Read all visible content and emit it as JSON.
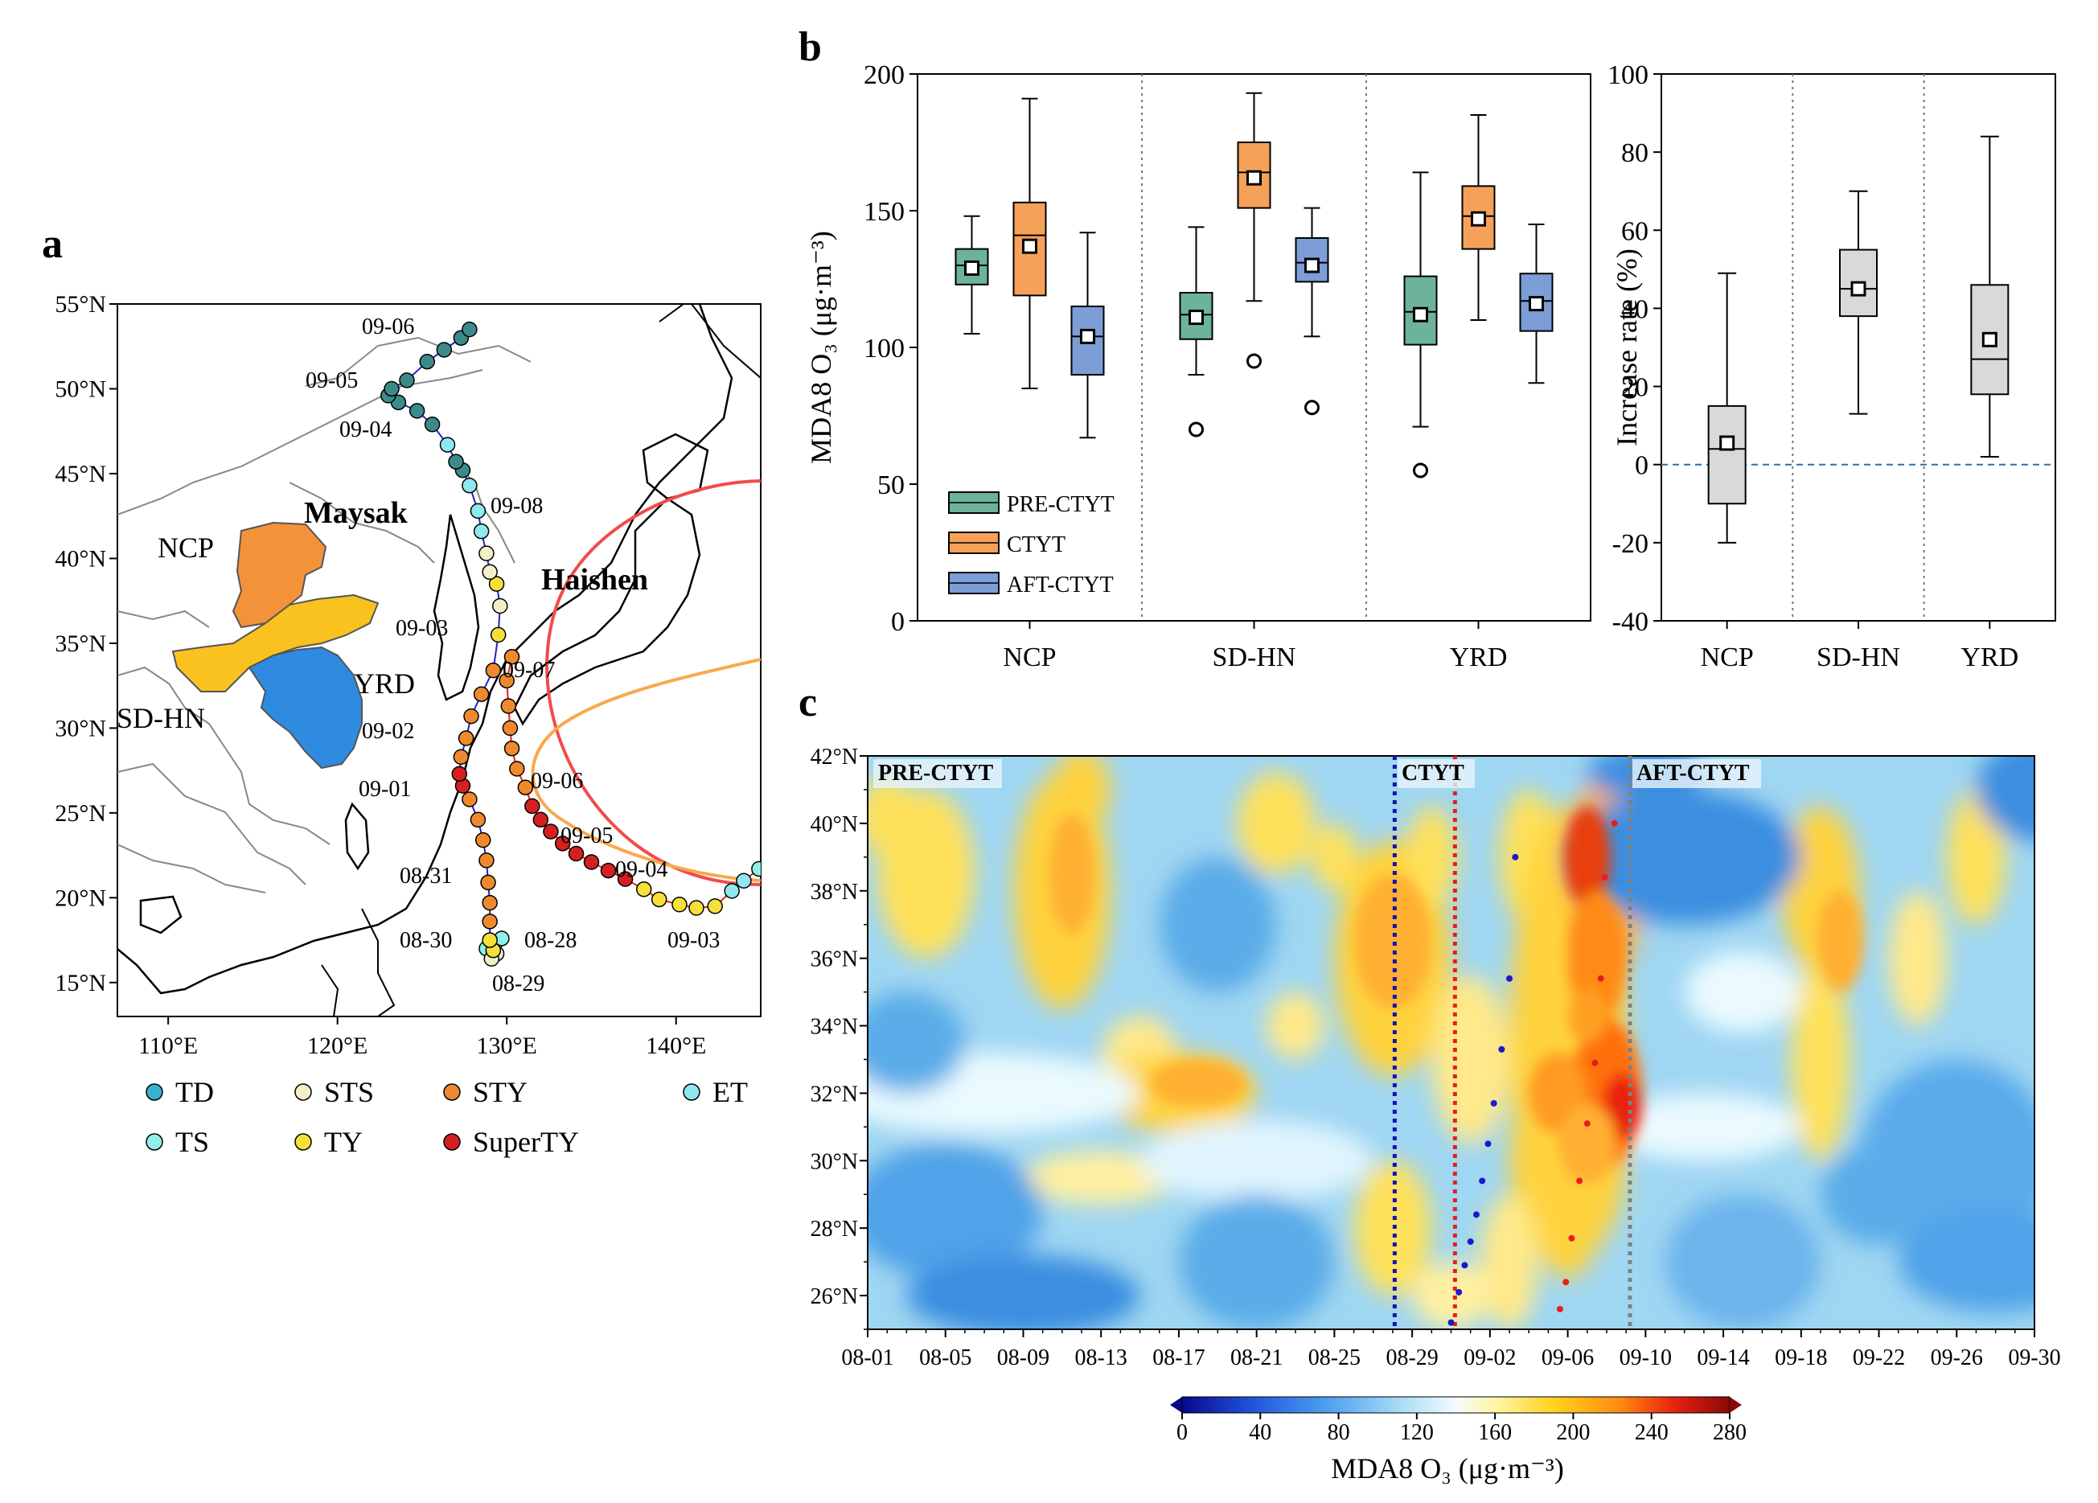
{
  "panels": {
    "a": {
      "letter": "a",
      "lat_ticks": [
        "15°N",
        "20°N",
        "25°N",
        "30°N",
        "35°N",
        "40°N",
        "45°N",
        "50°N",
        "55°N"
      ],
      "lon_ticks": [
        "110°E",
        "120°E",
        "130°E",
        "140°E"
      ],
      "lon_range": [
        107,
        145
      ],
      "lat_range": [
        13,
        55
      ],
      "regions": [
        {
          "name": "NCP",
          "color": "#f4923a"
        },
        {
          "name": "SD-HN",
          "color": "#f9c21e"
        },
        {
          "name": "YRD",
          "color": "#2f8be0"
        }
      ],
      "typhoon_labels": [
        {
          "name": "Maysak",
          "color": "#1a1aff"
        },
        {
          "name": "Haishen",
          "color": "#ee2222"
        }
      ],
      "maysak_dates": [
        "09-06",
        "09-05",
        "09-04",
        "09-03",
        "09-02",
        "09-01",
        "08-31",
        "08-30",
        "08-28",
        "08-29"
      ],
      "haishen_dates": [
        "09-08",
        "09-07",
        "09-06",
        "09-05",
        "09-04",
        "09-03"
      ],
      "legend": [
        {
          "label": "TD",
          "color": "#3ab0d0"
        },
        {
          "label": "STS",
          "color": "#f3f0c8"
        },
        {
          "label": "STY",
          "color": "#ee8a2d"
        },
        {
          "label": "ET",
          "color": "#8ee8f0"
        },
        {
          "label": "TS",
          "color": "#8ef0e8"
        },
        {
          "label": "TY",
          "color": "#f5e03a"
        },
        {
          "label": "SuperTY",
          "color": "#d42020"
        }
      ]
    },
    "b": {
      "letter": "b",
      "left_ylabel": "MDA8 O₃ (μg·m⁻³)",
      "right_ylabel": "Increase rate (%)",
      "left_yticks": [
        "0",
        "50",
        "100",
        "150",
        "200"
      ],
      "right_yticks": [
        "-40",
        "-20",
        "0",
        "20",
        "40",
        "60",
        "80",
        "100"
      ],
      "legend": [
        {
          "label": "PRE-CTYT",
          "color": "#6cb39a"
        },
        {
          "label": "CTYT",
          "color": "#f6a15a"
        },
        {
          "label": "AFT-CTYT",
          "color": "#7c9dd6"
        }
      ],
      "categories": [
        "NCP",
        "SD-HN",
        "YRD"
      ]
    },
    "c": {
      "letter": "c",
      "period_labels": [
        "PRE-CTYT",
        "CTYT",
        "AFT-CTYT"
      ],
      "lat_ticks": [
        "26°N",
        "28°N",
        "30°N",
        "32°N",
        "34°N",
        "36°N",
        "38°N",
        "40°N",
        "42°N"
      ],
      "date_ticks": [
        "08-01",
        "08-05",
        "08-09",
        "08-13",
        "08-17",
        "08-21",
        "08-25",
        "08-29",
        "09-02",
        "09-06",
        "09-10",
        "09-14",
        "09-18",
        "09-22",
        "09-26",
        "09-30"
      ],
      "colorbar_ticks": [
        "0",
        "40",
        "80",
        "120",
        "160",
        "200",
        "240",
        "280"
      ],
      "colorbar_label": "MDA8 O₃ (μg·m⁻³)"
    }
  },
  "chart_data": [
    {
      "type": "box",
      "panel": "b-left",
      "ylabel": "MDA8 O₃ (μg·m⁻³)",
      "ylim": [
        0,
        200
      ],
      "categories": [
        "NCP",
        "SD-HN",
        "YRD"
      ],
      "series": [
        {
          "name": "PRE-CTYT",
          "color": "#6cb39a",
          "boxes": [
            {
              "whislo": 105,
              "q1": 123,
              "med": 130,
              "q3": 136,
              "whishi": 148,
              "mean": 129,
              "fliers": []
            },
            {
              "whislo": 90,
              "q1": 103,
              "med": 112,
              "q3": 120,
              "whishi": 144,
              "mean": 111,
              "fliers": [
                70
              ]
            },
            {
              "whislo": 71,
              "q1": 101,
              "med": 113,
              "q3": 126,
              "whishi": 164,
              "mean": 112,
              "fliers": [
                55
              ]
            }
          ]
        },
        {
          "name": "CTYT",
          "color": "#f6a15a",
          "boxes": [
            {
              "whislo": 85,
              "q1": 119,
              "med": 141,
              "q3": 153,
              "whishi": 191,
              "mean": 137,
              "fliers": []
            },
            {
              "whislo": 117,
              "q1": 151,
              "med": 164,
              "q3": 175,
              "whishi": 193,
              "mean": 162,
              "fliers": [
                95
              ]
            },
            {
              "whislo": 110,
              "q1": 136,
              "med": 148,
              "q3": 159,
              "whishi": 185,
              "mean": 147,
              "fliers": []
            }
          ]
        },
        {
          "name": "AFT-CTYT",
          "color": "#7c9dd6",
          "boxes": [
            {
              "whislo": 67,
              "q1": 90,
              "med": 104,
              "q3": 115,
              "whishi": 142,
              "mean": 104,
              "fliers": []
            },
            {
              "whislo": 104,
              "q1": 124,
              "med": 131,
              "q3": 140,
              "whishi": 151,
              "mean": 130,
              "fliers": [
                78
              ]
            },
            {
              "whislo": 87,
              "q1": 106,
              "med": 117,
              "q3": 127,
              "whishi": 145,
              "mean": 116,
              "fliers": []
            }
          ]
        }
      ]
    },
    {
      "type": "box",
      "panel": "b-right",
      "ylabel": "Increase rate (%)",
      "ylim": [
        -40,
        100
      ],
      "categories": [
        "NCP",
        "SD-HN",
        "YRD"
      ],
      "series": [
        {
          "name": "",
          "color": "#d9d9d9",
          "boxes": [
            {
              "whislo": -20,
              "q1": -10,
              "med": 4,
              "q3": 15,
              "whishi": 49,
              "mean": 5.5
            },
            {
              "whislo": 13,
              "q1": 38,
              "med": 45,
              "q3": 55,
              "whishi": 70,
              "mean": 45
            },
            {
              "whislo": 2,
              "q1": 18,
              "med": 27,
              "q3": 46,
              "whishi": 84,
              "mean": 32
            }
          ]
        }
      ],
      "reference_line": 0
    },
    {
      "type": "heatmap",
      "panel": "c",
      "x": "date 08-01 to 09-30",
      "y": "latitude 25°N to 42°N",
      "colormap_range": [
        0,
        280
      ],
      "period_boundaries": {
        "ctyt_start": "08-28",
        "ctyt_start2": "08-31",
        "aft_start": "09-09"
      },
      "hotspots": [
        {
          "date": "09-06",
          "lat": 39,
          "value": 240
        },
        {
          "date": "09-07",
          "lat": 32,
          "value": 260
        },
        {
          "date": "08-28",
          "lat": 37,
          "value": 230
        },
        {
          "date": "09-06",
          "lat": 36,
          "value": 230
        },
        {
          "date": "09-19",
          "lat": 36.5,
          "value": 205
        },
        {
          "date": "08-11",
          "lat": 38,
          "value": 195
        }
      ],
      "maysak_track": [
        {
          "date": "09-03",
          "lat": 39
        },
        {
          "date": "09-03",
          "lat": 35.4
        },
        {
          "date": "09-02",
          "lat": 33.3
        },
        {
          "date": "09-02",
          "lat": 31.7
        },
        {
          "date": "09-02",
          "lat": 30.5
        },
        {
          "date": "09-01",
          "lat": 29.4
        },
        {
          "date": "09-01",
          "lat": 28.4
        },
        {
          "date": "09-01",
          "lat": 27.6
        },
        {
          "date": "09-01",
          "lat": 26.9
        },
        {
          "date": "09-01",
          "lat": 26.1
        },
        {
          "date": "08-31",
          "lat": 25.2
        }
      ],
      "haishen_track": [
        {
          "date": "09-07",
          "lat": 40
        },
        {
          "date": "09-07",
          "lat": 38.4
        },
        {
          "date": "09-07",
          "lat": 35.4
        },
        {
          "date": "09-07",
          "lat": 32.9
        },
        {
          "date": "09-06",
          "lat": 31.1
        },
        {
          "date": "09-06",
          "lat": 29.4
        },
        {
          "date": "09-06",
          "lat": 27.7
        },
        {
          "date": "09-06",
          "lat": 26.4
        },
        {
          "date": "09-06",
          "lat": 25.6
        }
      ]
    }
  ]
}
